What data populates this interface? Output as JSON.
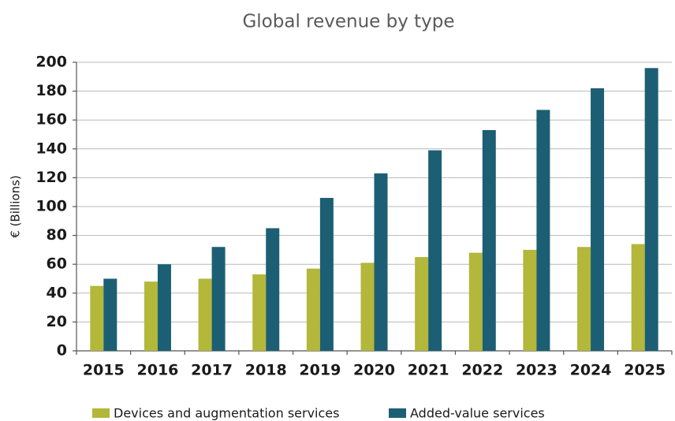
{
  "chart_data": {
    "type": "bar",
    "title": "Global revenue by type",
    "ylabel": "€ (Billions)",
    "categories": [
      "2015",
      "2016",
      "2017",
      "2018",
      "2019",
      "2020",
      "2021",
      "2022",
      "2023",
      "2024",
      "2025"
    ],
    "series": [
      {
        "name": "Devices and augmentation services",
        "color": "#b3b73a",
        "values": [
          45,
          48,
          50,
          53,
          57,
          61,
          65,
          68,
          70,
          72,
          74
        ]
      },
      {
        "name": "Added-value services",
        "color": "#1c5f74",
        "values": [
          50,
          60,
          72,
          85,
          106,
          123,
          139,
          153,
          167,
          182,
          196
        ]
      }
    ],
    "ylim": [
      0,
      200
    ],
    "yticks": [
      0,
      20,
      40,
      60,
      80,
      100,
      120,
      140,
      160,
      180,
      200
    ],
    "grid": true
  }
}
